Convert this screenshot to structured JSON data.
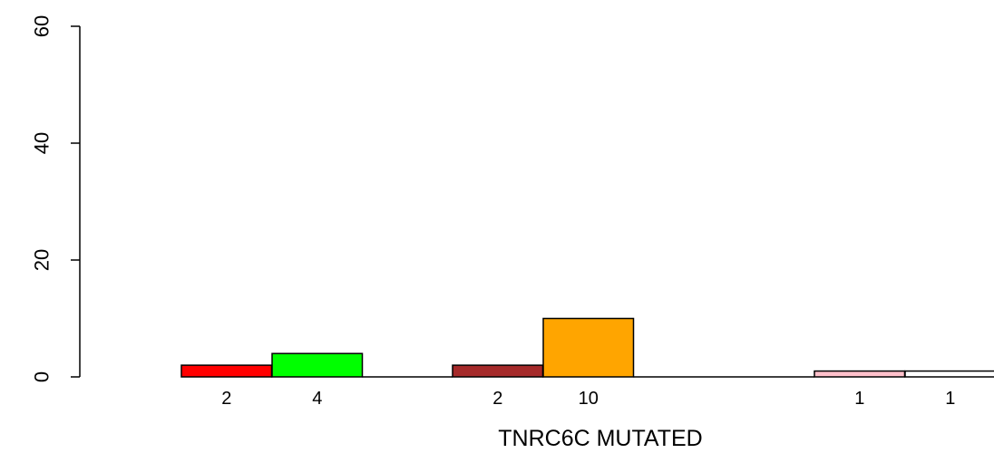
{
  "chart_data": {
    "type": "bar",
    "xlabel": "TNRC6C MUTATED",
    "ylabel": "",
    "title": "",
    "ylim": [
      0,
      60
    ],
    "yticks": [
      "0",
      "20",
      "40",
      "60"
    ],
    "grid": false,
    "bars": [
      {
        "label": "2",
        "value": 2,
        "color": "#ff0000"
      },
      {
        "label": "4",
        "value": 4,
        "color": "#00ff00"
      },
      {
        "label": "2",
        "value": 2,
        "color": "#a52a2a"
      },
      {
        "label": "10",
        "value": 10,
        "color": "#ffa500"
      },
      {
        "label": "1",
        "value": 1,
        "color": "#ffc0cb"
      },
      {
        "label": "1",
        "value": 1,
        "color": "#ffffff"
      }
    ]
  }
}
